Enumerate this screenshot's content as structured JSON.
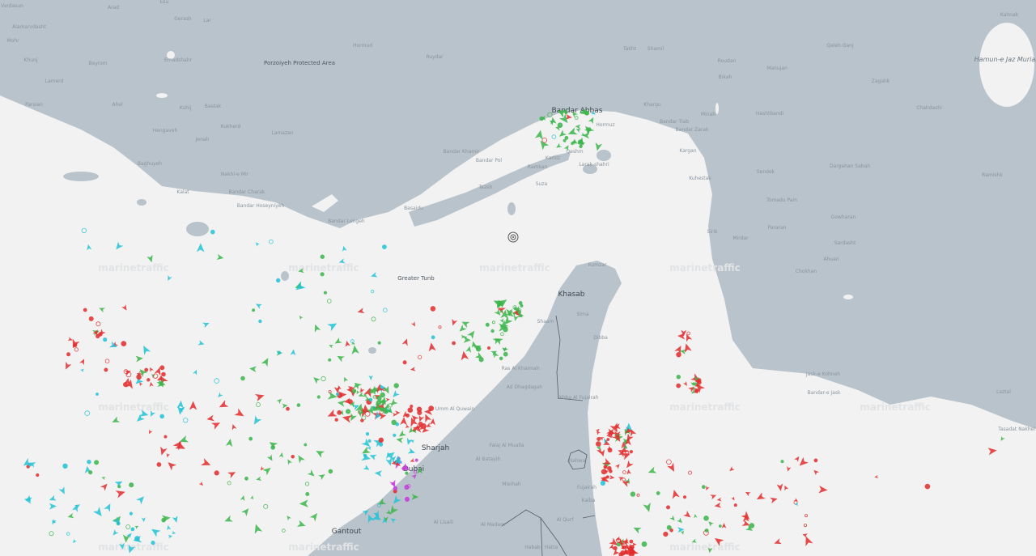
{
  "map": {
    "provider_watermark": "marinetraffic",
    "colors": {
      "land": "#b9c3cb",
      "sea": "#f2f2f2",
      "cargo": "#3bb54a",
      "tanker": "#e32b2b",
      "passenger": "#2e6be6",
      "tug_special": "#22c3d6",
      "pleasure": "#c83cdb",
      "unknown": "#a8b0b7"
    },
    "major_labels": [
      "Bandar Abbas",
      "Khasab",
      "Sharjah",
      "Dubai",
      "Gantout"
    ],
    "lake_label": "Hamun-e Jaz Murian",
    "protected_area": "Porzoiyeh Protected Area",
    "place_labels": [
      "Vardasun",
      "Arad",
      "Esu",
      "Gerash",
      "Lar",
      "Alamarvdasht",
      "Mohr",
      "Khunj",
      "Beyrom",
      "Emadshahr",
      "Lamerd",
      "Ahel",
      "Parsian",
      "Kukherd",
      "Kuhij",
      "Bastak",
      "Hengaveh",
      "Jenah",
      "Lamazan",
      "Hormud",
      "Ruydar",
      "Bandar Khamir",
      "Bandar Pol",
      "Tazeh",
      "Baghuyeh",
      "Nakhl-e Mir",
      "Kalat",
      "Bandar Charak",
      "Bandar Hoseyniyeh",
      "Bandar Lengeh",
      "Basaidu",
      "Qeshm",
      "Hormuz",
      "Larak-shahri",
      "Kamiz",
      "Ramkan",
      "Suza",
      "Khargu",
      "Bandar Tiab",
      "Bandar Zarak",
      "Kargan",
      "Kuhestak",
      "Minab",
      "Takht",
      "Shamil",
      "Roudan",
      "Bikah",
      "Manujan",
      "Hashtbandi",
      "Qaleh Ganj",
      "Zagahk",
      "Chahdashi",
      "Sirik",
      "Mirdar",
      "Pararan",
      "Gowharan",
      "Sardasht",
      "Ahuan",
      "Chokhan",
      "Sendek",
      "Tomadu Pain",
      "Dargahan Sabah",
      "Ramishk",
      "Bandar-e Jask",
      "Jask-e Kohneh",
      "Kahnak",
      "Laztal",
      "Tasadat Nakhel",
      "Greater Tunb",
      "Kumzar",
      "Sima",
      "Shaam",
      "Dibba",
      "Ras Al Khaimah",
      "Ad Dhagdagah",
      "Umm Al Quwain",
      "Falaj Al Mualla",
      "Al Batayih",
      "Mleihah",
      "Dibba Al Fujairah",
      "Nahwa",
      "Fujairah",
      "Kalba",
      "Al Lisaili",
      "Al Madam",
      "Al Qurf",
      "Hatta",
      "Habab"
    ],
    "center_marker": "target-icon"
  }
}
